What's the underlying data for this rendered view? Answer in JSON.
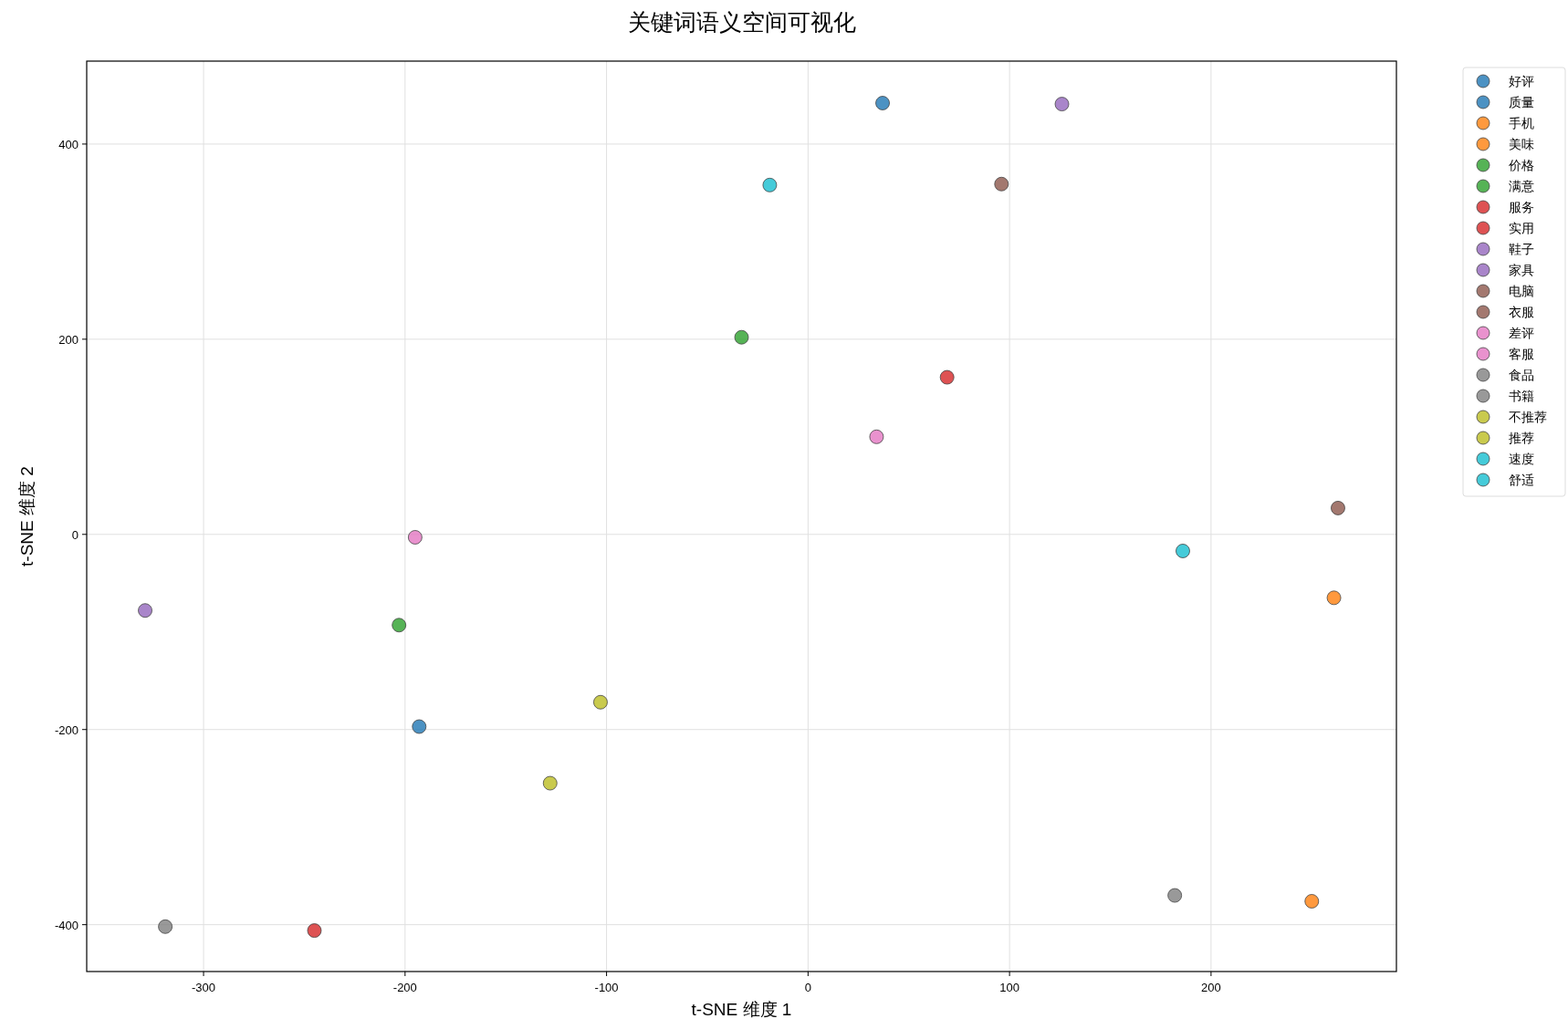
{
  "chart_data": {
    "type": "scatter",
    "title": "关键词语义空间可视化",
    "xlabel": "t-SNE 维度 1",
    "ylabel": "t-SNE 维度 2",
    "xlim": [
      -358,
      292
    ],
    "ylim": [
      -448,
      485
    ],
    "xticks": [
      -300,
      -200,
      -100,
      0,
      100,
      200
    ],
    "yticks": [
      -400,
      -200,
      0,
      200,
      400
    ],
    "grid": true,
    "legend": "top right",
    "marker": "circle",
    "series": [
      {
        "name": "好评",
        "color": "#1f77b4",
        "x": [
          37
        ],
        "values": [
          442
        ]
      },
      {
        "name": "质量",
        "color": "#1f77b4",
        "x": [
          -193
        ],
        "values": [
          -197
        ]
      },
      {
        "name": "手机",
        "color": "#ff7f0e",
        "x": [
          261
        ],
        "values": [
          -65
        ]
      },
      {
        "name": "美味",
        "color": "#ff7f0e",
        "x": [
          250
        ],
        "values": [
          -376
        ]
      },
      {
        "name": "价格",
        "color": "#2ca02c",
        "x": [
          -33
        ],
        "values": [
          202
        ]
      },
      {
        "name": "满意",
        "color": "#2ca02c",
        "x": [
          -203
        ],
        "values": [
          -93
        ]
      },
      {
        "name": "服务",
        "color": "#d62728",
        "x": [
          69
        ],
        "values": [
          161
        ]
      },
      {
        "name": "实用",
        "color": "#d62728",
        "x": [
          -245
        ],
        "values": [
          -406
        ]
      },
      {
        "name": "鞋子",
        "color": "#9467bd",
        "x": [
          126
        ],
        "values": [
          441
        ]
      },
      {
        "name": "家具",
        "color": "#9467bd",
        "x": [
          -329
        ],
        "values": [
          -78
        ]
      },
      {
        "name": "电脑",
        "color": "#8c564b",
        "x": [
          96
        ],
        "values": [
          359
        ]
      },
      {
        "name": "衣服",
        "color": "#8c564b",
        "x": [
          263
        ],
        "values": [
          27
        ]
      },
      {
        "name": "差评",
        "color": "#e377c2",
        "x": [
          34
        ],
        "values": [
          100
        ]
      },
      {
        "name": "客服",
        "color": "#e377c2",
        "x": [
          -195
        ],
        "values": [
          -3
        ]
      },
      {
        "name": "食品",
        "color": "#7f7f7f",
        "x": [
          182
        ],
        "values": [
          -370
        ]
      },
      {
        "name": "书籍",
        "color": "#7f7f7f",
        "x": [
          -319
        ],
        "values": [
          -402
        ]
      },
      {
        "name": "不推荐",
        "color": "#bcbd22",
        "x": [
          -103
        ],
        "values": [
          -172
        ]
      },
      {
        "name": "推荐",
        "color": "#bcbd22",
        "x": [
          -128
        ],
        "values": [
          -255
        ]
      },
      {
        "name": "速度",
        "color": "#17becf",
        "x": [
          -19
        ],
        "values": [
          358
        ]
      },
      {
        "name": "舒适",
        "color": "#17becf",
        "x": [
          186
        ],
        "values": [
          -17
        ]
      }
    ]
  }
}
